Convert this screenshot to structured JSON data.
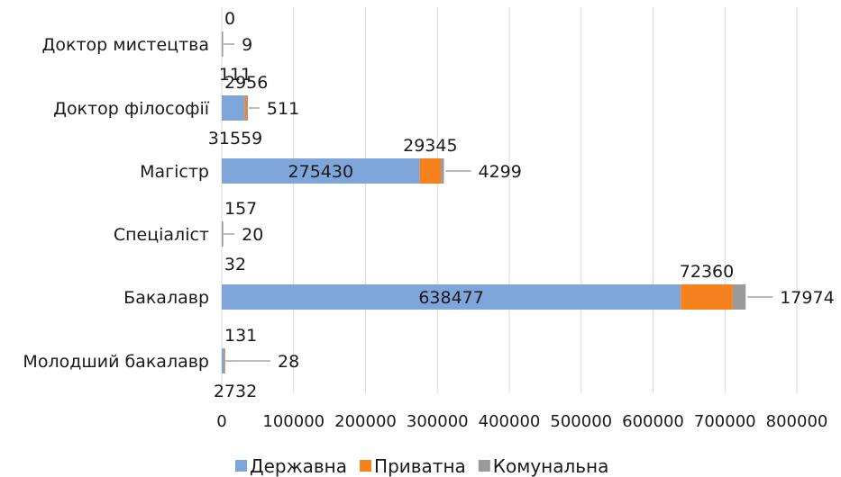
{
  "chart_data": {
    "type": "bar",
    "orientation": "horizontal",
    "stacked": true,
    "categories": [
      "Молодший бакалавр",
      "Бакалавр",
      "Спеціаліст",
      "Магістр",
      "Доктор філософії",
      "Доктор мистецтва"
    ],
    "series": [
      {
        "name": "Державна",
        "color": "#7fa6db",
        "values": [
          2732,
          638477,
          32,
          275430,
          31559,
          111
        ]
      },
      {
        "name": "Приватна",
        "color": "#f5821f",
        "values": [
          131,
          72360,
          157,
          29345,
          2956,
          0
        ]
      },
      {
        "name": "Комунальна",
        "color": "#9a9a9a",
        "values": [
          28,
          17974,
          20,
          4299,
          511,
          9
        ]
      }
    ],
    "x_ticks": [
      "0",
      "100000",
      "200000",
      "300000",
      "400000",
      "500000",
      "600000",
      "700000",
      "800000"
    ],
    "xlim": [
      0,
      800000
    ],
    "grid": true,
    "legend_position": "bottom"
  }
}
